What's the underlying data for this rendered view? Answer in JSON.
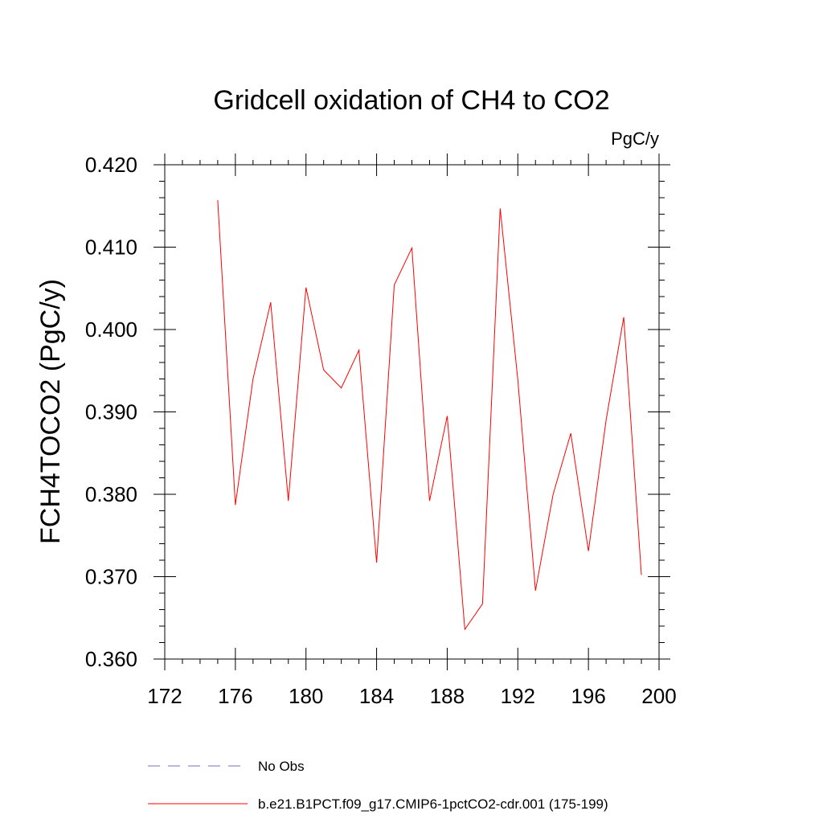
{
  "chart_data": {
    "type": "line",
    "title": "Gridcell oxidation of CH4 to CO2",
    "units": "PgC/y",
    "xlabel": "",
    "ylabel": "FCH4TOCO2  (PgC/y)",
    "xlim": [
      172,
      200
    ],
    "ylim": [
      0.36,
      0.42
    ],
    "x_ticks": [
      172,
      176,
      180,
      184,
      188,
      192,
      196,
      200
    ],
    "y_ticks": [
      0.36,
      0.37,
      0.38,
      0.39,
      0.4,
      0.41,
      0.42
    ],
    "x_tick_labels": [
      "172",
      "176",
      "180",
      "184",
      "188",
      "192",
      "196",
      "200"
    ],
    "y_tick_labels": [
      "0.360",
      "0.370",
      "0.380",
      "0.390",
      "0.400",
      "0.410",
      "0.420"
    ],
    "grid": false,
    "legend_position": "bottom",
    "series": [
      {
        "name": "b.e21.B1PCT.f09_g17.CMIP6-1pctCO2-cdr.001 (175-199)",
        "color": "#ff0000",
        "style": "solid",
        "x": [
          175,
          176,
          177,
          178,
          179,
          180,
          181,
          182,
          183,
          184,
          185,
          186,
          187,
          188,
          189,
          190,
          191,
          192,
          193,
          194,
          195,
          196,
          197,
          198,
          199
        ],
        "values": [
          0.4157,
          0.3787,
          0.394,
          0.4033,
          0.3792,
          0.4051,
          0.3951,
          0.3929,
          0.3975,
          0.3717,
          0.4054,
          0.4099,
          0.3792,
          0.3895,
          0.3636,
          0.3667,
          0.4147,
          0.3939,
          0.3683,
          0.38,
          0.3874,
          0.3731,
          0.389,
          0.4015,
          0.3702
        ]
      }
    ],
    "legend": [
      {
        "label": "No Obs",
        "color": "#7b6bb8",
        "style": "dashed"
      },
      {
        "label": "b.e21.B1PCT.f09_g17.CMIP6-1pctCO2-cdr.001 (175-199)",
        "color": "#ff0000",
        "style": "solid"
      }
    ]
  }
}
